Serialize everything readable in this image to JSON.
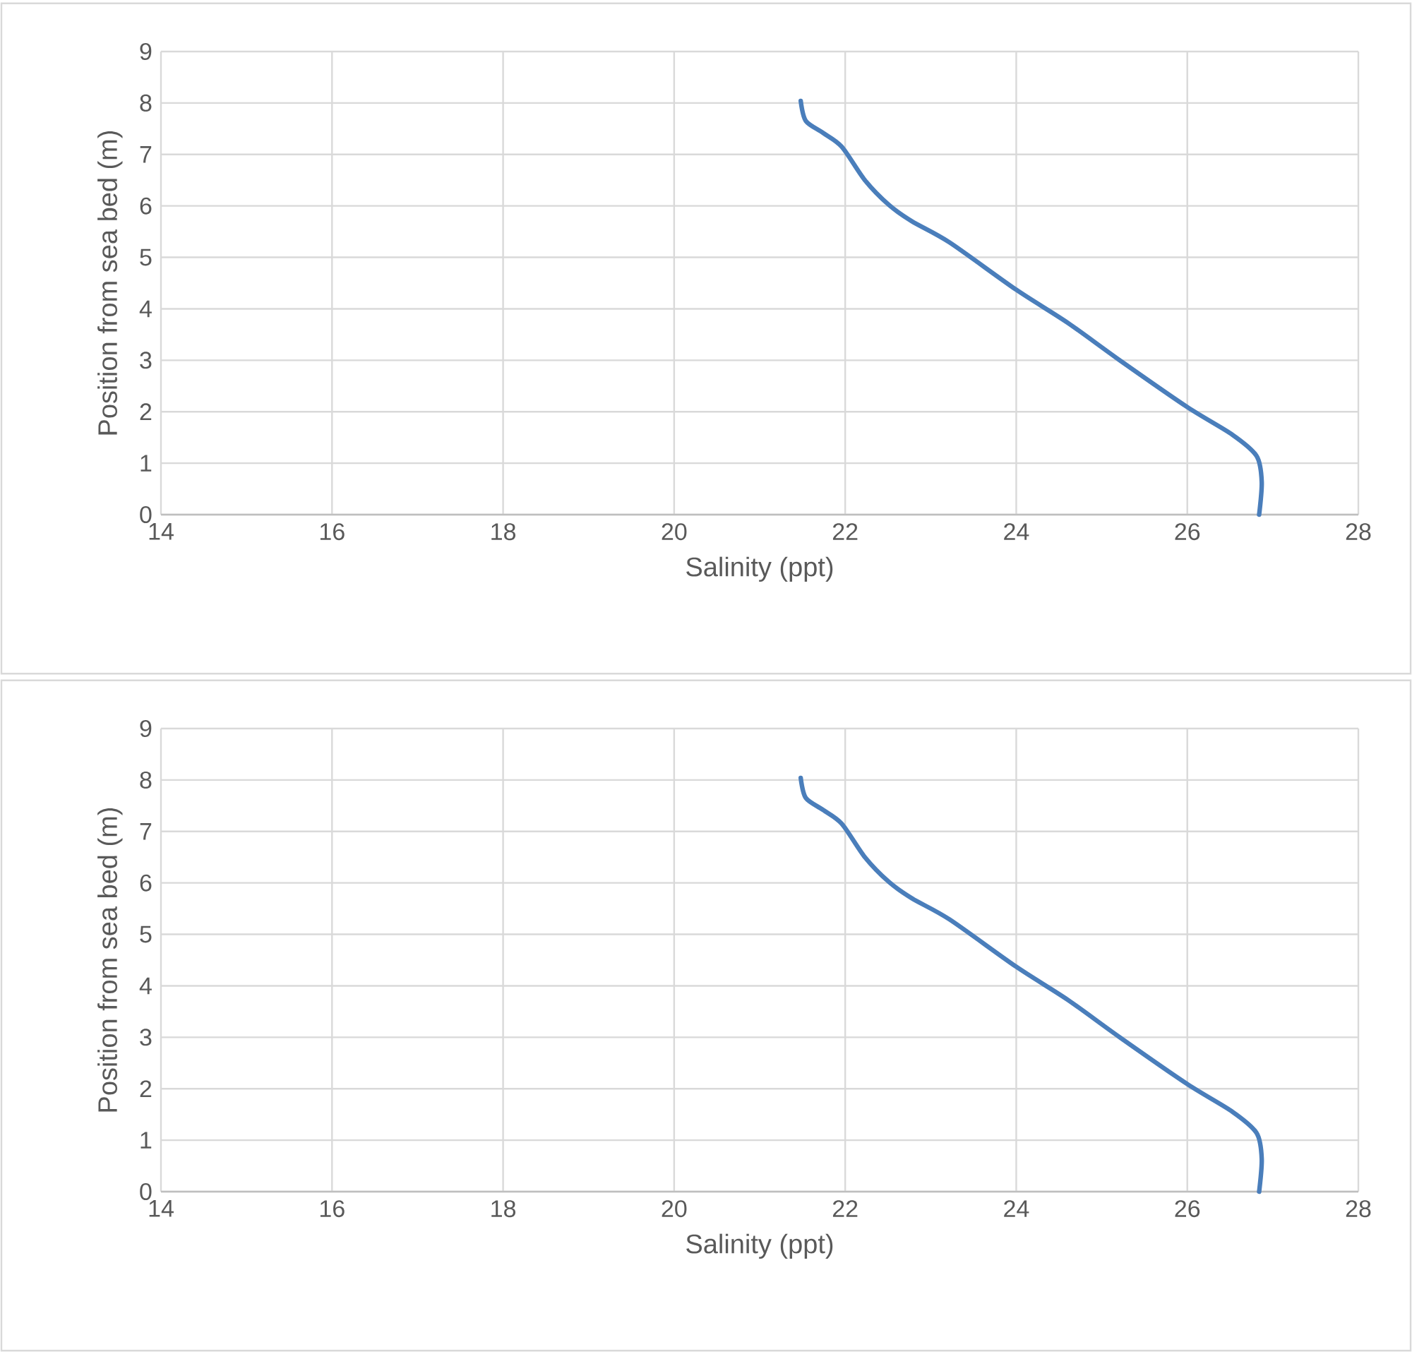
{
  "chart_data": [
    {
      "type": "line",
      "xlabel": "Salinity (ppt)",
      "ylabel": "Position from sea bed (m)",
      "xlim": [
        14,
        28
      ],
      "ylim": [
        0,
        9
      ],
      "xticks": [
        14,
        16,
        18,
        20,
        22,
        24,
        26,
        28
      ],
      "yticks": [
        0,
        1,
        2,
        3,
        4,
        5,
        6,
        7,
        8,
        9
      ],
      "grid": true,
      "marker": "none",
      "line_style": "solid",
      "series": [
        {
          "color": "#4a7ebb",
          "x": [
            21.48,
            21.54,
            21.74,
            21.96,
            22.23,
            22.51,
            22.78,
            23.22,
            24.0,
            24.6,
            25.21,
            26.0,
            26.53,
            26.81,
            26.87,
            26.84
          ],
          "values": [
            8.04,
            7.65,
            7.42,
            7.15,
            6.5,
            6.02,
            5.7,
            5.29,
            4.37,
            3.73,
            3.0,
            2.09,
            1.55,
            1.14,
            0.64,
            0
          ]
        }
      ]
    },
    {
      "type": "line",
      "xlabel": "Salinity (ppt)",
      "ylabel": "Position from sea bed (m)",
      "xlim": [
        14,
        28
      ],
      "ylim": [
        0,
        9
      ],
      "xticks": [
        14,
        16,
        18,
        20,
        22,
        24,
        26,
        28
      ],
      "yticks": [
        0,
        1,
        2,
        3,
        4,
        5,
        6,
        7,
        8,
        9
      ],
      "grid": true,
      "marker": "none",
      "line_style": "solid",
      "series": [
        {
          "color": "#4a7ebb",
          "x": [
            21.48,
            21.54,
            21.74,
            21.96,
            22.23,
            22.51,
            22.78,
            23.22,
            24.0,
            24.6,
            25.21,
            26.0,
            26.53,
            26.81,
            26.87,
            26.84
          ],
          "values": [
            8.04,
            7.65,
            7.42,
            7.15,
            6.5,
            6.02,
            5.7,
            5.29,
            4.37,
            3.73,
            3.0,
            2.09,
            1.55,
            1.14,
            0.64,
            0
          ]
        }
      ]
    }
  ]
}
